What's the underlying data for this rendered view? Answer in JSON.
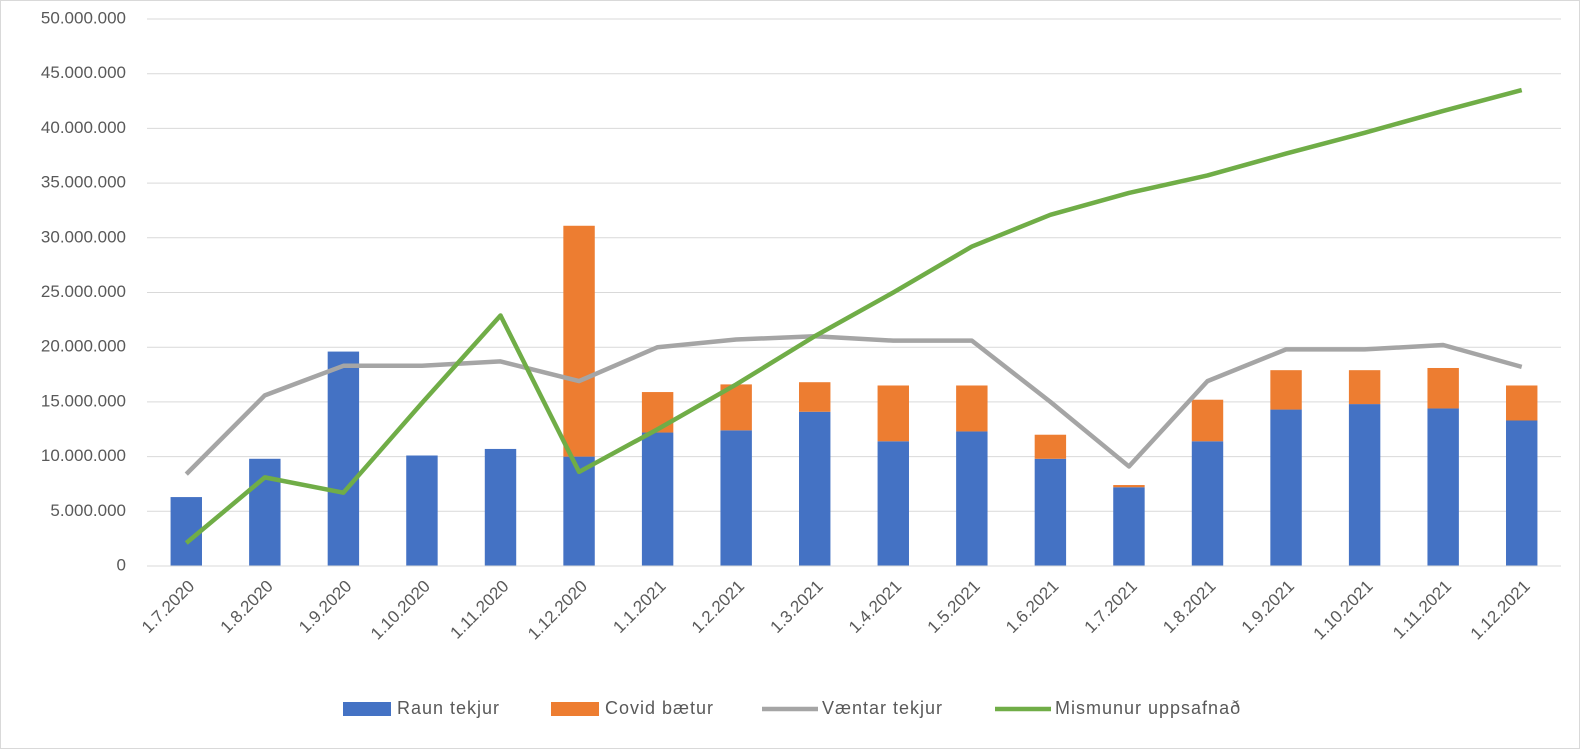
{
  "chart_data": {
    "type": "bar",
    "categories": [
      "1.7.2020",
      "1.8.2020",
      "1.9.2020",
      "1.10.2020",
      "1.11.2020",
      "1.12.2020",
      "1.1.2021",
      "1.2.2021",
      "1.3.2021",
      "1.4.2021",
      "1.5.2021",
      "1.6.2021",
      "1.7.2021",
      "1.8.2021",
      "1.9.2021",
      "1.10.2021",
      "1.11.2021",
      "1.12.2021"
    ],
    "series": [
      {
        "name": "Raun tekjur",
        "color": "#4472c4",
        "kind": "bar",
        "values": [
          6300000,
          9800000,
          19600000,
          10100000,
          10700000,
          10000000,
          12200000,
          12400000,
          14100000,
          11400000,
          12300000,
          9800000,
          7200000,
          11400000,
          14300000,
          14800000,
          14400000,
          13300000
        ]
      },
      {
        "name": "Covid bætur",
        "color": "#ed7d31",
        "kind": "bar",
        "values": [
          0,
          0,
          0,
          0,
          0,
          21100000,
          3700000,
          4200000,
          2700000,
          5100000,
          4200000,
          2200000,
          200000,
          3800000,
          3600000,
          3100000,
          3700000,
          3200000
        ]
      },
      {
        "name": "Væntar tekjur",
        "color": "#a5a5a5",
        "kind": "line",
        "values": [
          8400000,
          15600000,
          18300000,
          18300000,
          18700000,
          16900000,
          20000000,
          20700000,
          21000000,
          20600000,
          20600000,
          15000000,
          9100000,
          16900000,
          19800000,
          19800000,
          20200000,
          18200000
        ]
      },
      {
        "name": "Mismunur uppsafnað",
        "color": "#70ad47",
        "kind": "line",
        "values": [
          2100000,
          8100000,
          6700000,
          14900000,
          22900000,
          8600000,
          12500000,
          16600000,
          21000000,
          25000000,
          29200000,
          32100000,
          34100000,
          35700000,
          37700000,
          39600000,
          41600000,
          43500000
        ]
      }
    ],
    "ylim": [
      0,
      50000000
    ],
    "yticks": [
      0,
      {
        "value": 5000000,
        "label": "5.000.000"
      },
      {
        "value": 10000000,
        "label": "10.000.000"
      },
      {
        "value": 15000000,
        "label": "15.000.000"
      },
      {
        "value": 20000000,
        "label": "20.000.000"
      },
      {
        "value": 25000000,
        "label": "25.000.000"
      },
      {
        "value": 30000000,
        "label": "30.000.000"
      },
      {
        "value": 35000000,
        "label": "35.000.000"
      },
      {
        "value": 40000000,
        "label": "40.000.000"
      },
      {
        "value": 45000000,
        "label": "45.000.000"
      },
      {
        "value": 50000000,
        "label": "50.000.000"
      }
    ],
    "grid": true,
    "legend": "bottom"
  }
}
